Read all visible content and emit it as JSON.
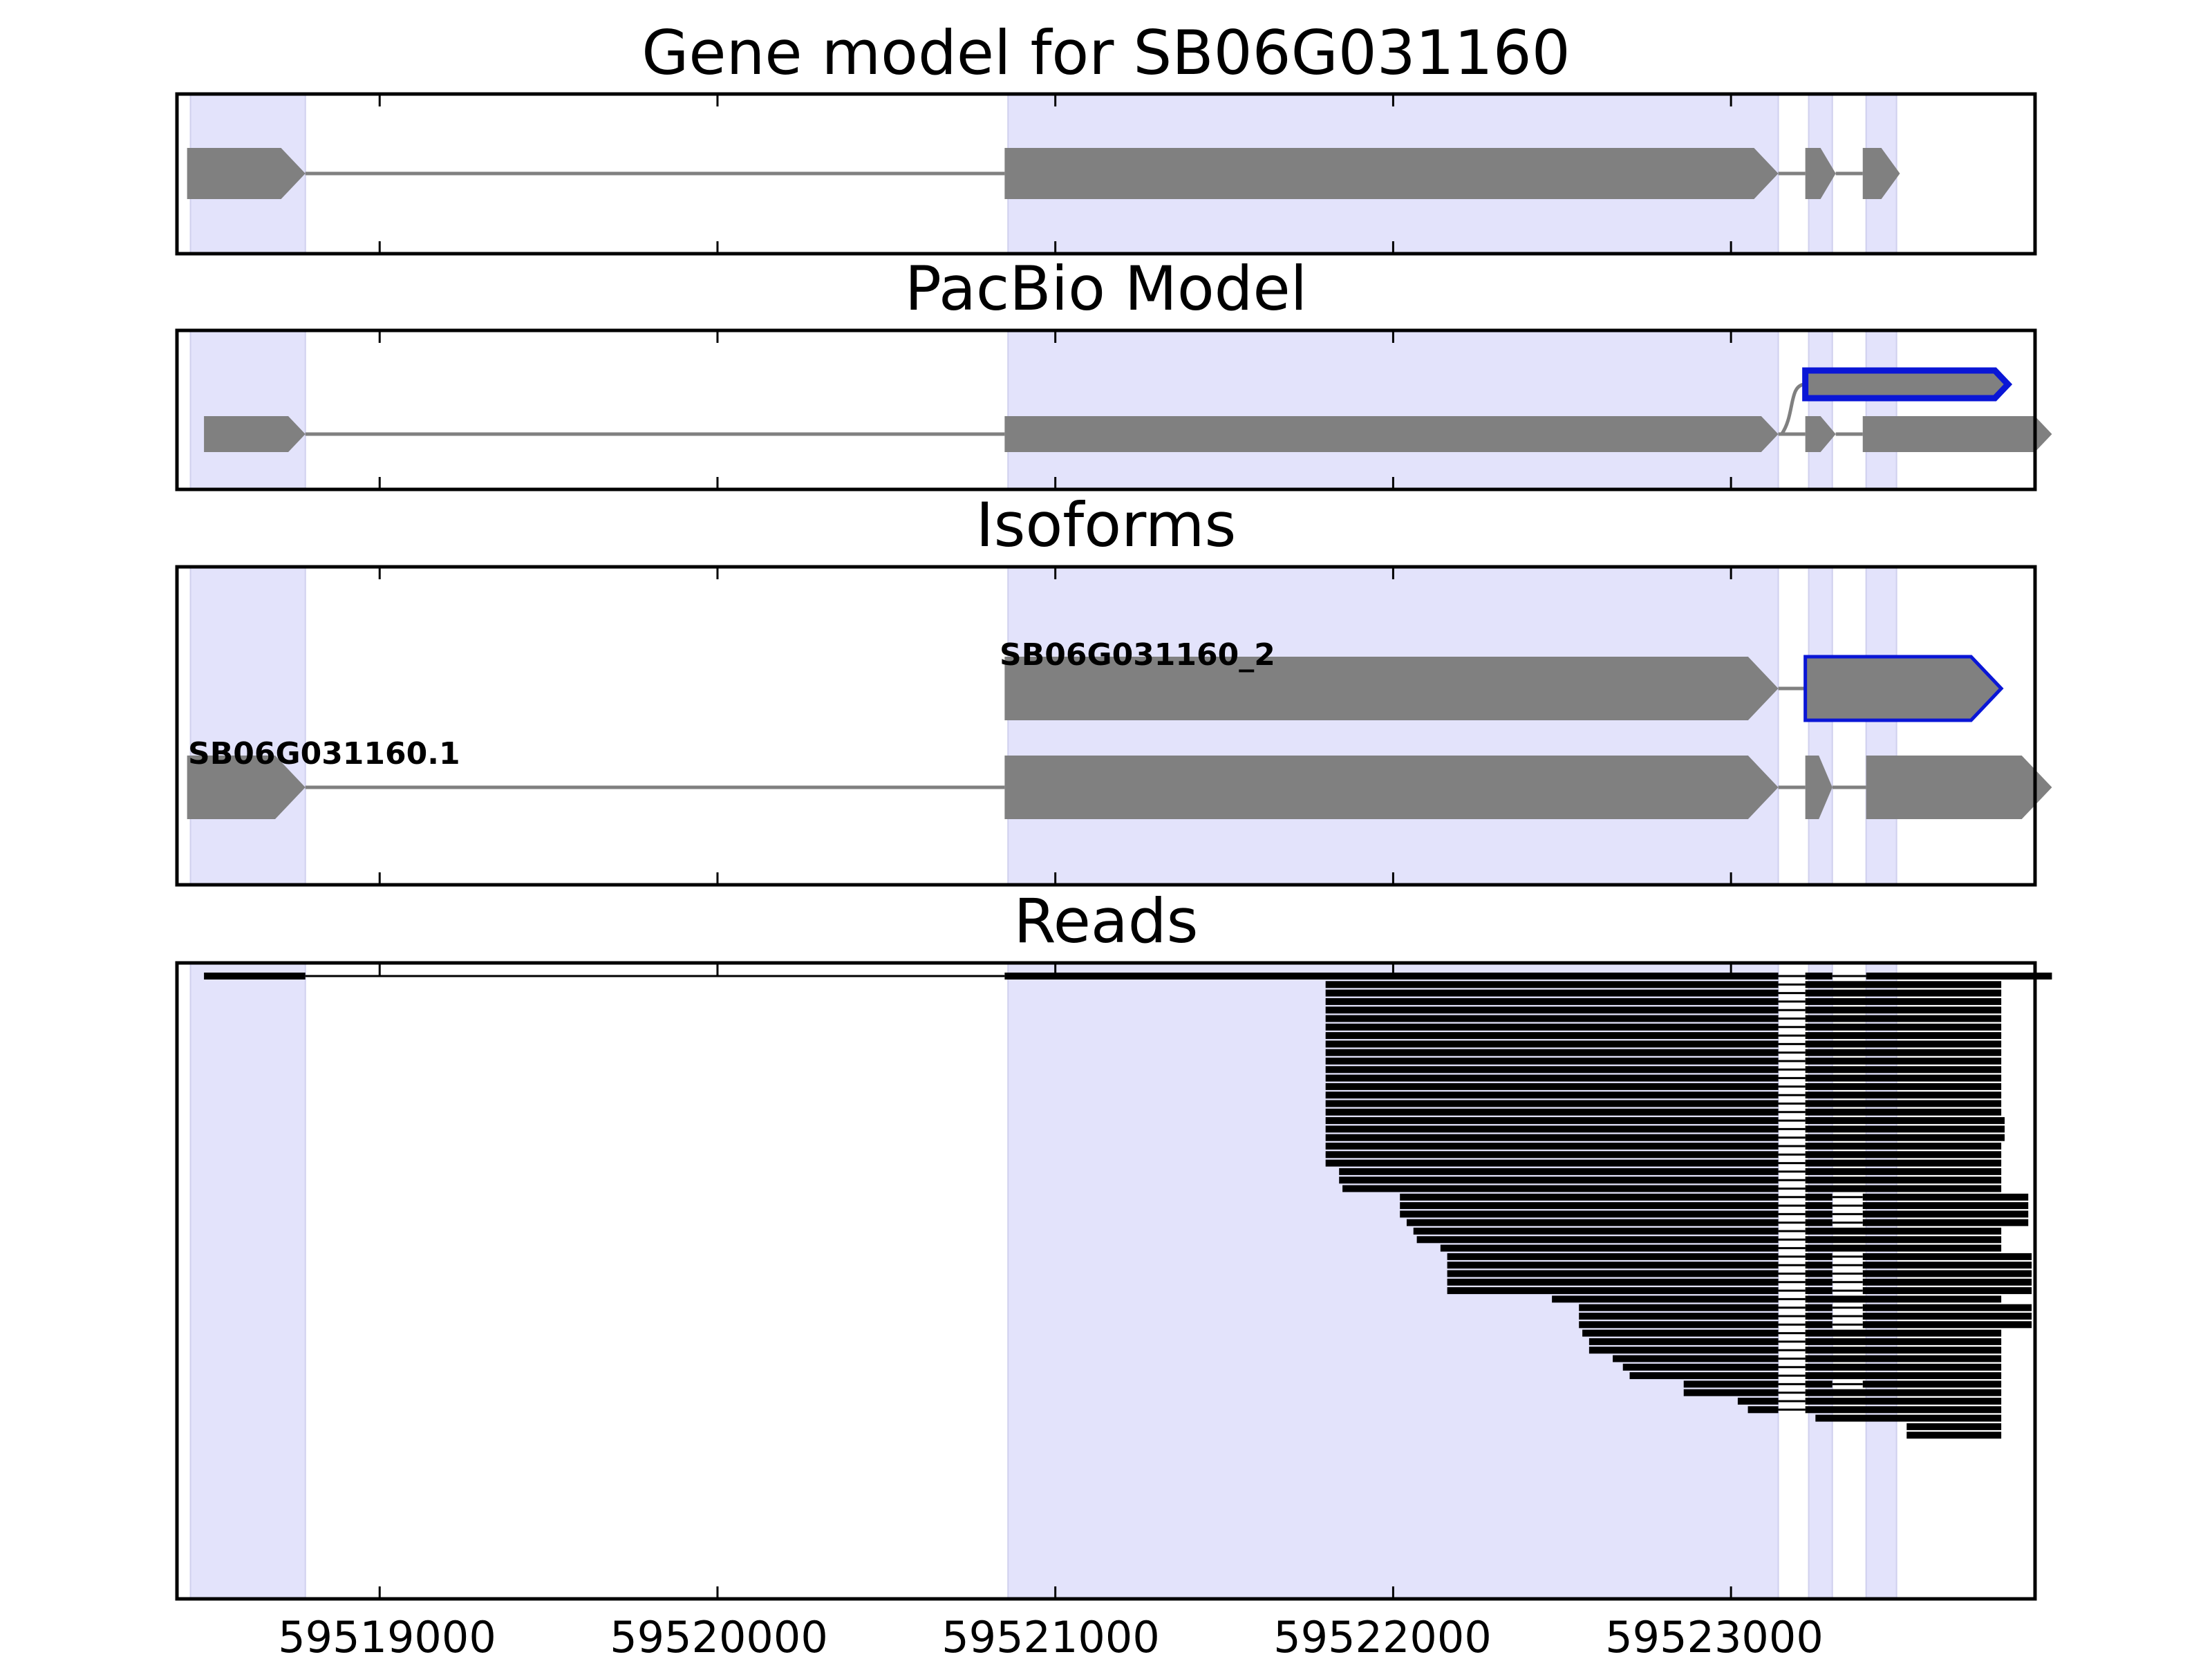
{
  "figure": {
    "panels": [
      {
        "id": "gene-model",
        "title": "Gene model for SB06G031160"
      },
      {
        "id": "pacbio-model",
        "title": "PacBio Model"
      },
      {
        "id": "isoforms",
        "title": "Isoforms"
      },
      {
        "id": "reads",
        "title": "Reads"
      }
    ],
    "colors": {
      "exon": "#808080",
      "intron_line": "#808080",
      "highlight_band": "#e3e3fb",
      "novel_exon_outline": "#0a16d6",
      "read": "#000000"
    }
  },
  "chart_data": {
    "type": "gene-structure",
    "x_axis": {
      "range": [
        59518400,
        59523900
      ],
      "ticks": [
        59519000,
        59520000,
        59521000,
        59522000,
        59523000
      ],
      "tick_labels": [
        "59519000",
        "59520000",
        "59521000",
        "59522000",
        "59523000"
      ]
    },
    "highlight_regions": [
      [
        59518440,
        59518780
      ],
      [
        59520860,
        59523140
      ],
      [
        59523230,
        59523300
      ],
      [
        59523400,
        59523490
      ]
    ],
    "gene_model": {
      "exons": [
        [
          59518430,
          59518780
        ],
        [
          59520850,
          59523140
        ],
        [
          59523220,
          59523310
        ],
        [
          59523390,
          59523500
        ]
      ]
    },
    "pacbio_model": {
      "main": {
        "exons": [
          [
            59518480,
            59518780
          ],
          [
            59520850,
            59523140
          ],
          [
            59523220,
            59523310
          ],
          [
            59523390,
            59523950
          ]
        ]
      },
      "novel": {
        "exons": [
          [
            59523220,
            59523820
          ]
        ]
      }
    },
    "isoforms": [
      {
        "label": "SB06G031160_2",
        "exons": [
          [
            59520850,
            59523140
          ],
          [
            59523220,
            59523800
          ]
        ],
        "outlined_exon": 1
      },
      {
        "label": "SB06G031160.1",
        "exons": [
          [
            59518430,
            59518780
          ],
          [
            59520850,
            59523140
          ],
          [
            59523220,
            59523300
          ],
          [
            59523400,
            59523950
          ]
        ],
        "outlined_exon": -1
      }
    ],
    "reads": [
      {
        "start": 59518480,
        "end": 59523950,
        "type": "full"
      },
      {
        "start": 59521800,
        "end": 59523800,
        "type": "a"
      },
      {
        "start": 59521800,
        "end": 59523800,
        "type": "a"
      },
      {
        "start": 59521800,
        "end": 59523800,
        "type": "a"
      },
      {
        "start": 59521800,
        "end": 59523800,
        "type": "a"
      },
      {
        "start": 59521800,
        "end": 59523800,
        "type": "a"
      },
      {
        "start": 59521800,
        "end": 59523800,
        "type": "a"
      },
      {
        "start": 59521800,
        "end": 59523800,
        "type": "a"
      },
      {
        "start": 59521800,
        "end": 59523800,
        "type": "a"
      },
      {
        "start": 59521800,
        "end": 59523800,
        "type": "a"
      },
      {
        "start": 59521800,
        "end": 59523800,
        "type": "a"
      },
      {
        "start": 59521800,
        "end": 59523800,
        "type": "a"
      },
      {
        "start": 59521800,
        "end": 59523800,
        "type": "a"
      },
      {
        "start": 59521800,
        "end": 59523800,
        "type": "a"
      },
      {
        "start": 59521800,
        "end": 59523800,
        "type": "a"
      },
      {
        "start": 59521800,
        "end": 59523800,
        "type": "a"
      },
      {
        "start": 59521800,
        "end": 59523800,
        "type": "a"
      },
      {
        "start": 59521800,
        "end": 59523810,
        "type": "a"
      },
      {
        "start": 59521800,
        "end": 59523810,
        "type": "a"
      },
      {
        "start": 59521800,
        "end": 59523810,
        "type": "a"
      },
      {
        "start": 59521800,
        "end": 59523800,
        "type": "a"
      },
      {
        "start": 59521800,
        "end": 59523800,
        "type": "a"
      },
      {
        "start": 59521800,
        "end": 59523800,
        "type": "a"
      },
      {
        "start": 59521840,
        "end": 59523800,
        "type": "a"
      },
      {
        "start": 59521840,
        "end": 59523800,
        "type": "a"
      },
      {
        "start": 59521850,
        "end": 59523800,
        "type": "a"
      },
      {
        "start": 59522020,
        "end": 59523880,
        "type": "b"
      },
      {
        "start": 59522020,
        "end": 59523880,
        "type": "b"
      },
      {
        "start": 59522020,
        "end": 59523880,
        "type": "b"
      },
      {
        "start": 59522040,
        "end": 59523880,
        "type": "b"
      },
      {
        "start": 59522060,
        "end": 59523800,
        "type": "a"
      },
      {
        "start": 59522070,
        "end": 59523800,
        "type": "a"
      },
      {
        "start": 59522140,
        "end": 59523800,
        "type": "a"
      },
      {
        "start": 59522160,
        "end": 59523890,
        "type": "b"
      },
      {
        "start": 59522160,
        "end": 59523890,
        "type": "b"
      },
      {
        "start": 59522160,
        "end": 59523890,
        "type": "b"
      },
      {
        "start": 59522160,
        "end": 59523890,
        "type": "b"
      },
      {
        "start": 59522160,
        "end": 59523890,
        "type": "b"
      },
      {
        "start": 59522470,
        "end": 59523800,
        "type": "a"
      },
      {
        "start": 59522550,
        "end": 59523890,
        "type": "b"
      },
      {
        "start": 59522550,
        "end": 59523890,
        "type": "b"
      },
      {
        "start": 59522550,
        "end": 59523890,
        "type": "b"
      },
      {
        "start": 59522560,
        "end": 59523800,
        "type": "a"
      },
      {
        "start": 59522580,
        "end": 59523800,
        "type": "a"
      },
      {
        "start": 59522580,
        "end": 59523800,
        "type": "a"
      },
      {
        "start": 59522650,
        "end": 59523800,
        "type": "a"
      },
      {
        "start": 59522680,
        "end": 59523800,
        "type": "a"
      },
      {
        "start": 59522700,
        "end": 59523800,
        "type": "a"
      },
      {
        "start": 59522860,
        "end": 59523800,
        "type": "b"
      },
      {
        "start": 59522860,
        "end": 59523800,
        "type": "a"
      },
      {
        "start": 59523020,
        "end": 59523800,
        "type": "a"
      },
      {
        "start": 59523050,
        "end": 59523800,
        "type": "a"
      },
      {
        "start": 59523250,
        "end": 59523800,
        "type": "t"
      },
      {
        "start": 59523520,
        "end": 59523800,
        "type": "t"
      },
      {
        "start": 59523520,
        "end": 59523800,
        "type": "t"
      }
    ]
  }
}
